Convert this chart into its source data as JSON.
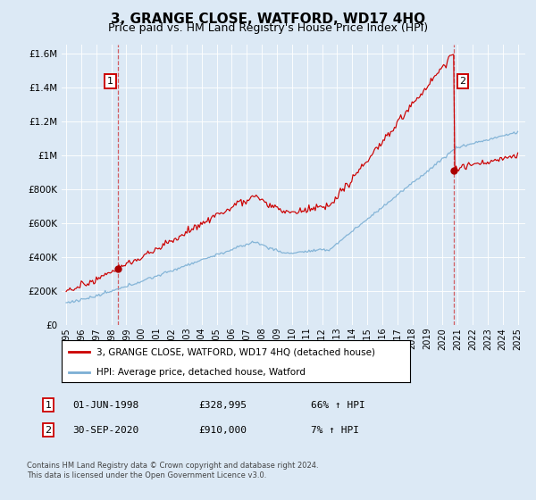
{
  "title": "3, GRANGE CLOSE, WATFORD, WD17 4HQ",
  "subtitle": "Price paid vs. HM Land Registry's House Price Index (HPI)",
  "title_fontsize": 11,
  "subtitle_fontsize": 9,
  "background_color": "#dce9f5",
  "plot_bg_color": "#dce9f5",
  "red_line_color": "#cc0000",
  "blue_line_color": "#7bafd4",
  "marker_color": "#aa0000",
  "ylim": [
    0,
    1650000
  ],
  "yticks": [
    0,
    200000,
    400000,
    600000,
    800000,
    1000000,
    1200000,
    1400000,
    1600000
  ],
  "ytick_labels": [
    "£0",
    "£200K",
    "£400K",
    "£600K",
    "£800K",
    "£1M",
    "£1.2M",
    "£1.4M",
    "£1.6M"
  ],
  "xlim_start": 1994.7,
  "xlim_end": 2025.5,
  "xtick_years": [
    1995,
    1996,
    1997,
    1998,
    1999,
    2000,
    2001,
    2002,
    2003,
    2004,
    2005,
    2006,
    2007,
    2008,
    2009,
    2010,
    2011,
    2012,
    2013,
    2014,
    2015,
    2016,
    2017,
    2018,
    2019,
    2020,
    2021,
    2022,
    2023,
    2024,
    2025
  ],
  "sale1_x": 1998.42,
  "sale1_y": 328995,
  "sale1_label": "1",
  "sale1_date": "01-JUN-1998",
  "sale1_price": "£328,995",
  "sale1_hpi": "66% ↑ HPI",
  "sale2_x": 2020.75,
  "sale2_y": 910000,
  "sale2_label": "2",
  "sale2_date": "30-SEP-2020",
  "sale2_price": "£910,000",
  "sale2_hpi": "7% ↑ HPI",
  "legend_line1": "3, GRANGE CLOSE, WATFORD, WD17 4HQ (detached house)",
  "legend_line2": "HPI: Average price, detached house, Watford",
  "footer_line1": "Contains HM Land Registry data © Crown copyright and database right 2024.",
  "footer_line2": "This data is licensed under the Open Government Licence v3.0."
}
